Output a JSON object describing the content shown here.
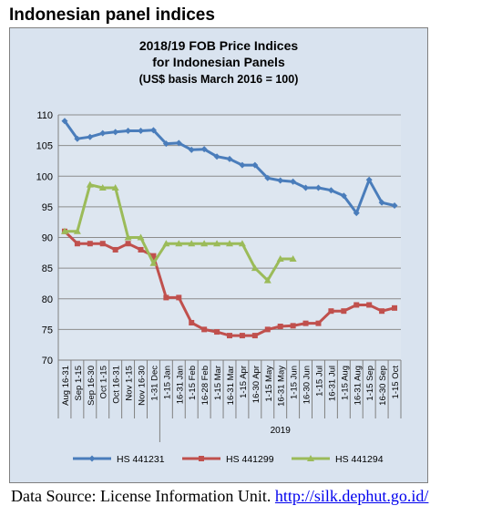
{
  "page": {
    "heading": "Indonesian panel indices",
    "source_prefix": "Data Source: License Information Unit. ",
    "source_link": "http://silk.dephut.go.id/"
  },
  "chart_data": {
    "type": "line",
    "title": [
      "2018/19 FOB Price Indices",
      "for Indonesian Panels",
      "(US$ basis March 2016 = 100)"
    ],
    "categories": [
      "Aug 16-31",
      "Sep 1-15",
      "Sep 16-30",
      "Oct 1-15",
      "Oct 16-31",
      "Nov 1-15",
      "Nov 16-30",
      "1-31 Dec",
      "1-15 Jan",
      "16-31 Jan",
      "1-15 Feb",
      "16-28 Feb",
      "1-15 Mar",
      "16-31 Mar",
      "1-15 Apr",
      "16-30 Apr",
      "1-15 May",
      "16-31 May",
      "1-15 Jun",
      "16-30 Jun",
      "1-15 Jul",
      "16-31 Jul",
      "1-15 Aug",
      "16-31 Aug",
      "1-15 Sep",
      "16-30 Sep",
      "1-15 Oct"
    ],
    "year_label": "2019",
    "ylim": [
      70,
      110
    ],
    "yticks": [
      70,
      75,
      80,
      85,
      90,
      95,
      100,
      105,
      110
    ],
    "grid": true,
    "legend_position": "bottom",
    "series": [
      {
        "name": "HS 441231",
        "color": "#4a7dbb",
        "values": [
          109,
          106.1,
          106.4,
          107,
          107.2,
          107.4,
          107.4,
          107.5,
          105.3,
          105.4,
          104.3,
          104.4,
          103.2,
          102.8,
          101.8,
          101.8,
          99.7,
          99.3,
          99.1,
          98.1,
          98.1,
          97.7,
          96.8,
          94,
          99.4,
          95.7,
          95.2
        ]
      },
      {
        "name": "HS 441299",
        "color": "#c0504d",
        "values": [
          91,
          89,
          89,
          89,
          88,
          89,
          88,
          87,
          80.2,
          80.2,
          76.1,
          75,
          74.6,
          74,
          74,
          74,
          75,
          75.5,
          75.6,
          76,
          76,
          78,
          78,
          79,
          79,
          78,
          78.5
        ]
      },
      {
        "name": "HS 441294",
        "color": "#9bbb59",
        "values": [
          91,
          91,
          98.6,
          98.1,
          98.1,
          90,
          90,
          85.8,
          89,
          89,
          89,
          89,
          89,
          89,
          89,
          85,
          83,
          86.5,
          86.5,
          null,
          null,
          null,
          null,
          null,
          null,
          null,
          null
        ]
      }
    ]
  }
}
